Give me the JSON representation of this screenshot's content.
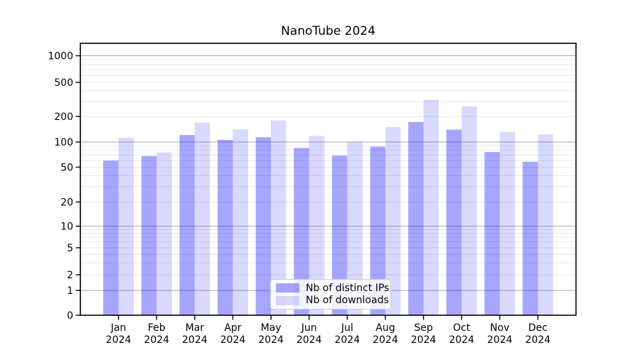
{
  "title": "NanoTube 2024",
  "chart_data": {
    "type": "bar",
    "title": "NanoTube 2024",
    "categories": [
      "Jan",
      "Feb",
      "Mar",
      "Apr",
      "May",
      "Jun",
      "Jul",
      "Aug",
      "Sep",
      "Oct",
      "Nov",
      "Dec"
    ],
    "x_tick_second_line": "2024",
    "series": [
      {
        "name": "Nb of distinct IPs",
        "color": "rgba(0,0,255,0.35)",
        "values": [
          60,
          68,
          121,
          106,
          114,
          85,
          69,
          88,
          172,
          140,
          76,
          58
        ]
      },
      {
        "name": "Nb of downloads",
        "color": "rgba(0,0,255,0.15)",
        "values": [
          112,
          75,
          169,
          141,
          180,
          118,
          101,
          150,
          312,
          262,
          131,
          123
        ]
      }
    ],
    "y_scale": "symlog",
    "y_ticks": [
      0,
      1,
      2,
      5,
      10,
      20,
      50,
      100,
      200,
      500,
      1000
    ],
    "y_tick_labels": [
      "0",
      "1",
      "2",
      "5",
      "10",
      "20",
      "50",
      "100",
      "200",
      "500",
      "1000"
    ],
    "ylim": [
      0,
      1450
    ],
    "grid": true,
    "major_grid_values": [
      1,
      10,
      100,
      1000
    ],
    "legend_position": "inside-bottom-center"
  },
  "colors": {
    "bar_dark": "rgba(0,0,255,0.35)",
    "bar_light": "rgba(0,0,255,0.15)",
    "grid_major": "#ababab",
    "grid_minor": "#e8e8e8",
    "spine": "#000000",
    "text": "#000000",
    "legend_border": "#cccccc",
    "background": "#ffffff"
  }
}
